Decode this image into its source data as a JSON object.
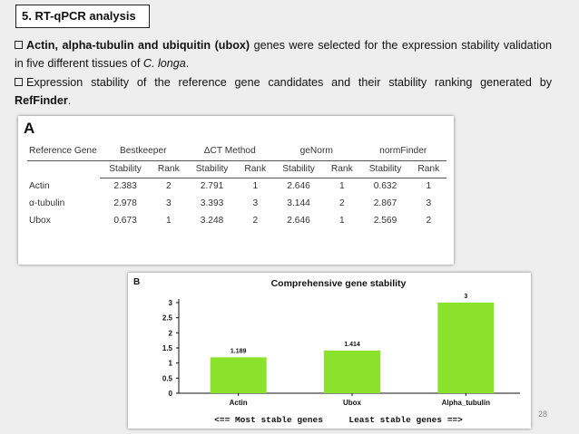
{
  "section_title": "5. RT-qPCR analysis",
  "bullet1": {
    "bold": "Actin, alpha-tubulin and ubiquitin (ubox)",
    "text": " genes were selected for the expression stability validation in five different tissues of ",
    "italic": "C. longa",
    "end": "."
  },
  "bullet2": {
    "text": "Expression stability of the reference gene candidates and their stability ranking generated by ",
    "bold": "RefFinder",
    "end": "."
  },
  "table": {
    "panel_label": "A",
    "first_header": "Reference Gene",
    "groups": [
      "Bestkeeper",
      "ΔCT Method",
      "geNorm",
      "normFinder"
    ],
    "subheaders": [
      "Stability",
      "Rank"
    ],
    "rows": [
      {
        "gene": "Actin",
        "cells": [
          "2.383",
          "2",
          "2.791",
          "1",
          "2.646",
          "1",
          "0.632",
          "1"
        ]
      },
      {
        "gene": "α-tubulin",
        "cells": [
          "2.978",
          "3",
          "3.393",
          "3",
          "3.144",
          "2",
          "2.867",
          "3"
        ]
      },
      {
        "gene": "Ubox",
        "cells": [
          "0.673",
          "1",
          "3.248",
          "2",
          "2.646",
          "1",
          "2.569",
          "2"
        ]
      }
    ]
  },
  "chart_data": {
    "type": "bar",
    "panel_label": "B",
    "title": "Comprehensive gene stability",
    "categories": [
      "Actin",
      "Ubox",
      "Alpha_tubulin"
    ],
    "values": [
      1.189,
      1.414,
      3
    ],
    "value_labels": [
      "1.189",
      "1.414",
      "3"
    ],
    "yticks": [
      "0",
      "0.5",
      "1",
      "1.5",
      "2",
      "2.5",
      "3"
    ],
    "ylim": [
      0,
      3
    ],
    "xlabel": "<== Most stable genes     Least stable genes ==>",
    "bar_color": "#8ae22a",
    "grid": false,
    "legend": "none"
  },
  "page_number": "28"
}
